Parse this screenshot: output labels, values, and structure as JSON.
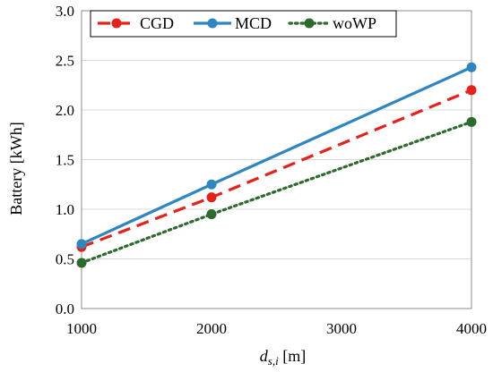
{
  "chart_data": {
    "type": "line",
    "x": [
      1000,
      2000,
      4000
    ],
    "xlim": [
      1000,
      4000
    ],
    "ylim": [
      0.0,
      3.0
    ],
    "xticks": [
      "1000",
      "2000",
      "3000",
      "4000"
    ],
    "yticks": [
      "0.0",
      "0.5",
      "1.0",
      "1.5",
      "2.0",
      "2.5",
      "3.0"
    ],
    "xlabel": {
      "main": "d",
      "sub": "s,i",
      "unit": " [m]"
    },
    "ylabel": "Battery [kWh]",
    "grid": "horizontal",
    "legend_position": "top-left",
    "series": [
      {
        "name": "CGD",
        "values": [
          0.62,
          1.12,
          2.2
        ],
        "color": "#e8201a",
        "style": "dashed"
      },
      {
        "name": "MCD",
        "values": [
          0.65,
          1.25,
          2.43
        ],
        "color": "#2e86c1",
        "style": "solid"
      },
      {
        "name": "woWP",
        "values": [
          0.46,
          0.95,
          1.88
        ],
        "color": "#2d6a2d",
        "style": "dotted"
      }
    ]
  }
}
